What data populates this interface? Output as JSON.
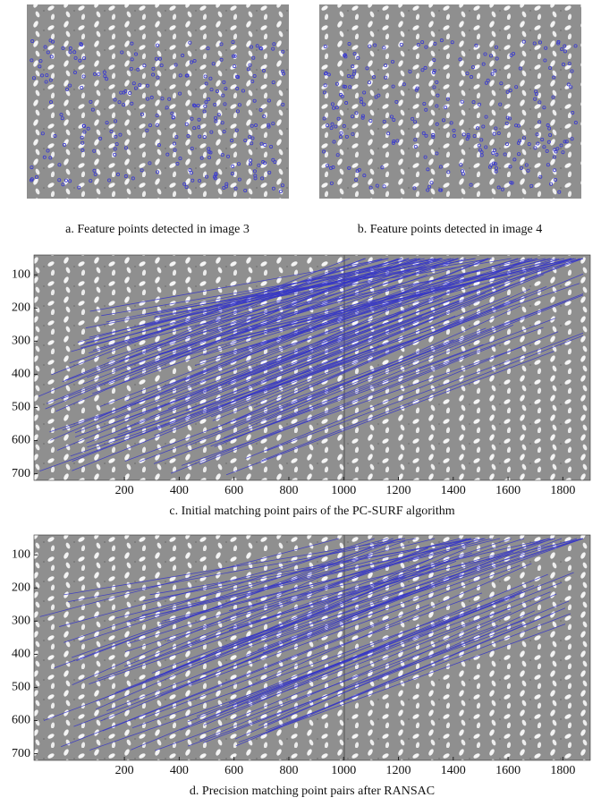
{
  "panels": [
    {
      "caption": "a. Feature points detected in image 3"
    },
    {
      "caption": "b. Feature points detected in image 4"
    },
    {
      "caption": "c. Initial matching point pairs of the PC-SURF algorithm",
      "xlim": [
        -130,
        1900
      ],
      "ylim": [
        40,
        720
      ],
      "xticks": [
        200,
        400,
        600,
        800,
        1000,
        1200,
        1400,
        1600,
        1800
      ],
      "yticks": [
        100,
        200,
        300,
        400,
        500,
        600,
        700
      ]
    },
    {
      "caption": "d. Precision matching point pairs after RANSAC",
      "xlim": [
        -130,
        1900
      ],
      "ylim": [
        40,
        720
      ],
      "xticks": [
        200,
        400,
        600,
        800,
        1000,
        1200,
        1400,
        1600,
        1800
      ],
      "yticks": [
        100,
        200,
        300,
        400,
        500,
        600,
        700
      ]
    }
  ]
}
